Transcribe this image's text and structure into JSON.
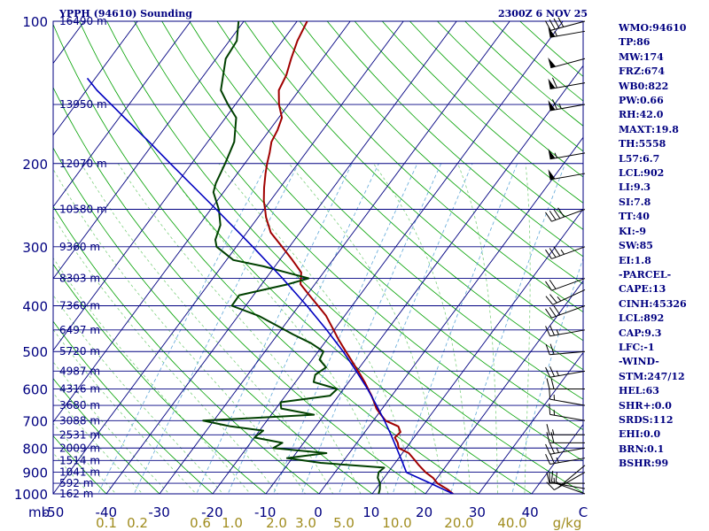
{
  "header": {
    "title": "YPPH (94610) Sounding",
    "timestamp": "2300Z  6 NOV 25"
  },
  "indices": [
    "WMO:94610",
    "TP:86",
    "MW:174",
    "FRZ:674",
    "WB0:822",
    "PW:0.66",
    "RH:42.0",
    "MAXT:19.8",
    "TH:5558",
    "L57:6.7",
    "LCL:902",
    "LI:9.3",
    "SI:7.8",
    "TT:40",
    "KI:-9",
    "SW:85",
    "EI:1.8",
    "-PARCEL-",
    "CAPE:13",
    "CINH:45326",
    "LCL:892",
    "CAP:9.3",
    "LFC:-1",
    "-WIND-",
    "STM:247/12",
    "HEL:63",
    "SHR+:0.0",
    "SRDS:112",
    "EHI:0.0",
    "BRN:0.1",
    "BSHR:99"
  ],
  "colors": {
    "background": "#ffffff",
    "isobar": "#000080",
    "isotherm": "#000080",
    "dry_adiabat": "#00a000",
    "moist_adiabat": "#7fd07f",
    "mixing_ratio": "#60a8d8",
    "temperature": "#a00000",
    "dewpoint": "#004000",
    "parcel": "#0000c0",
    "text": "#000080",
    "wind_barb": "#000000",
    "mixing_ratio_label": "#a08c1e"
  },
  "chart_data": {
    "type": "line",
    "title": "YPPH (94610) Sounding",
    "xlabel": "",
    "ylabel": "mb",
    "x_unit": "C",
    "xlim": [
      -50,
      50
    ],
    "ylim": [
      1000,
      100
    ],
    "y_scale": "log",
    "x_ticks": [
      "-50",
      "-40",
      "-30",
      "-20",
      "-10",
      "0",
      "10",
      "20",
      "30",
      "40",
      "C"
    ],
    "pressure_ticks": [
      {
        "p": 100,
        "label": "100"
      },
      {
        "p": 200,
        "label": "200"
      },
      {
        "p": 300,
        "label": "300"
      },
      {
        "p": 400,
        "label": "400"
      },
      {
        "p": 500,
        "label": "500"
      },
      {
        "p": 600,
        "label": "600"
      },
      {
        "p": 700,
        "label": "700"
      },
      {
        "p": 800,
        "label": "800"
      },
      {
        "p": 900,
        "label": "900"
      },
      {
        "p": 1000,
        "label": "1000"
      }
    ],
    "x_axis_unit_label": "mb",
    "height_labels": [
      {
        "p": 100,
        "label": "16490 m"
      },
      {
        "p": 150,
        "label": "13950 m"
      },
      {
        "p": 200,
        "label": "12070 m"
      },
      {
        "p": 250,
        "label": "10580 m"
      },
      {
        "p": 300,
        "label": "9360 m"
      },
      {
        "p": 350,
        "label": "8303 m"
      },
      {
        "p": 400,
        "label": "7360 m"
      },
      {
        "p": 450,
        "label": "6497 m"
      },
      {
        "p": 500,
        "label": "5720 m"
      },
      {
        "p": 550,
        "label": "4987 m"
      },
      {
        "p": 600,
        "label": "4316 m"
      },
      {
        "p": 650,
        "label": "3680 m"
      },
      {
        "p": 700,
        "label": "3088 m"
      },
      {
        "p": 750,
        "label": "2531 m"
      },
      {
        "p": 800,
        "label": "2009 m"
      },
      {
        "p": 850,
        "label": "1514 m"
      },
      {
        "p": 900,
        "label": "1041 m"
      },
      {
        "p": 950,
        "label": "592 m"
      },
      {
        "p": 1000,
        "label": "162 m"
      }
    ],
    "mixing_ratio_labels": [
      "0.1",
      "0.2",
      "0.6",
      "1.0",
      "2.0",
      "3.0",
      "5.0",
      "10.0",
      "20.0",
      "40.0",
      "g/kg"
    ],
    "series": [
      {
        "key": "temperature",
        "points": [
          [
            1000,
            25.2
          ],
          [
            978,
            23.5
          ],
          [
            950,
            20.8
          ],
          [
            925,
            19.2
          ],
          [
            900,
            17.0
          ],
          [
            870,
            14.8
          ],
          [
            850,
            13.4
          ],
          [
            820,
            11.2
          ],
          [
            800,
            8.6
          ],
          [
            780,
            7.7
          ],
          [
            760,
            6.4
          ],
          [
            740,
            6.7
          ],
          [
            720,
            5.5
          ],
          [
            700,
            2.3
          ],
          [
            680,
            0.6
          ],
          [
            660,
            -1.1
          ],
          [
            640,
            -2.4
          ],
          [
            620,
            -3.8
          ],
          [
            600,
            -5.4
          ],
          [
            580,
            -7.0
          ],
          [
            560,
            -8.8
          ],
          [
            540,
            -10.7
          ],
          [
            520,
            -12.7
          ],
          [
            500,
            -14.8
          ],
          [
            470,
            -18.0
          ],
          [
            450,
            -20.1
          ],
          [
            420,
            -23.5
          ],
          [
            400,
            -26.4
          ],
          [
            380,
            -29.5
          ],
          [
            360,
            -32.7
          ],
          [
            340,
            -34.2
          ],
          [
            320,
            -37.6
          ],
          [
            300,
            -41.4
          ],
          [
            280,
            -45.5
          ],
          [
            260,
            -48.5
          ],
          [
            250,
            -49.8
          ],
          [
            240,
            -51.2
          ],
          [
            225,
            -53.0
          ],
          [
            210,
            -54.7
          ],
          [
            200,
            -55.8
          ],
          [
            190,
            -56.8
          ],
          [
            180,
            -58.0
          ],
          [
            170,
            -58.5
          ],
          [
            160,
            -59.4
          ],
          [
            150,
            -61.8
          ],
          [
            140,
            -63.8
          ],
          [
            130,
            -64.5
          ],
          [
            120,
            -65.9
          ],
          [
            110,
            -67.2
          ],
          [
            100,
            -68.1
          ]
        ]
      },
      {
        "key": "dewpoint",
        "points": [
          [
            1000,
            11.2
          ],
          [
            978,
            10.8
          ],
          [
            950,
            10.0
          ],
          [
            925,
            8.8
          ],
          [
            900,
            8.2
          ],
          [
            880,
            8.6
          ],
          [
            860,
            -4.0
          ],
          [
            840,
            -11.0
          ],
          [
            820,
            -4.3
          ],
          [
            800,
            -15.0
          ],
          [
            780,
            -14.0
          ],
          [
            760,
            -20.0
          ],
          [
            735,
            -19.3
          ],
          [
            720,
            -26.0
          ],
          [
            700,
            -32.0
          ],
          [
            680,
            -12.0
          ],
          [
            660,
            -19.0
          ],
          [
            640,
            -20.0
          ],
          [
            620,
            -11.6
          ],
          [
            600,
            -11.2
          ],
          [
            580,
            -16.6
          ],
          [
            560,
            -17.3
          ],
          [
            540,
            -16.3
          ],
          [
            520,
            -18.6
          ],
          [
            500,
            -19.0
          ],
          [
            480,
            -22.5
          ],
          [
            460,
            -27.1
          ],
          [
            440,
            -31.5
          ],
          [
            420,
            -36.2
          ],
          [
            400,
            -42.6
          ],
          [
            380,
            -42.7
          ],
          [
            360,
            -35.0
          ],
          [
            350,
            -32.0
          ],
          [
            340,
            -37.0
          ],
          [
            330,
            -42.2
          ],
          [
            320,
            -48.7
          ],
          [
            300,
            -53.7
          ],
          [
            290,
            -54.9
          ],
          [
            270,
            -56.0
          ],
          [
            250,
            -58.5
          ],
          [
            230,
            -61.9
          ],
          [
            220,
            -62.7
          ],
          [
            200,
            -63.7
          ],
          [
            180,
            -65.0
          ],
          [
            160,
            -68.0
          ],
          [
            150,
            -71.4
          ],
          [
            140,
            -74.7
          ],
          [
            120,
            -78.2
          ],
          [
            110,
            -78.6
          ],
          [
            100,
            -81.0
          ]
        ]
      },
      {
        "key": "parcel",
        "points": [
          [
            1000,
            25.2
          ],
          [
            950,
            19.5
          ],
          [
            902,
            13.6
          ],
          [
            900,
            13.4
          ],
          [
            850,
            10.9
          ],
          [
            800,
            8.2
          ],
          [
            750,
            5.3
          ],
          [
            700,
            2.1
          ],
          [
            650,
            -1.5
          ],
          [
            600,
            -5.5
          ],
          [
            550,
            -10.1
          ],
          [
            500,
            -15.3
          ],
          [
            450,
            -21.4
          ],
          [
            400,
            -28.5
          ],
          [
            350,
            -36.9
          ],
          [
            300,
            -46.9
          ],
          [
            250,
            -59.0
          ],
          [
            200,
            -74.0
          ],
          [
            180,
            -81.0
          ],
          [
            160,
            -89.0
          ],
          [
            140,
            -98.0
          ],
          [
            132,
            -101.5
          ]
        ]
      }
    ],
    "winds": [
      {
        "p": 1000,
        "dir": 290,
        "spd": 20
      },
      {
        "p": 975,
        "dir": 280,
        "spd": 15
      },
      {
        "p": 950,
        "dir": 270,
        "spd": 10
      },
      {
        "p": 900,
        "dir": 240,
        "spd": 10
      },
      {
        "p": 870,
        "dir": 230,
        "spd": 5
      },
      {
        "p": 840,
        "dir": 260,
        "spd": 25
      },
      {
        "p": 800,
        "dir": 260,
        "spd": 25
      },
      {
        "p": 780,
        "dir": 270,
        "spd": 20
      },
      {
        "p": 750,
        "dir": 270,
        "spd": 15
      },
      {
        "p": 700,
        "dir": 280,
        "spd": 15
      },
      {
        "p": 650,
        "dir": 280,
        "spd": 15
      },
      {
        "p": 600,
        "dir": 270,
        "spd": 20
      },
      {
        "p": 550,
        "dir": 260,
        "spd": 25
      },
      {
        "p": 500,
        "dir": 265,
        "spd": 20
      },
      {
        "p": 450,
        "dir": 260,
        "spd": 25
      },
      {
        "p": 400,
        "dir": 250,
        "spd": 30
      },
      {
        "p": 370,
        "dir": 245,
        "spd": 25
      },
      {
        "p": 350,
        "dir": 250,
        "spd": 20
      },
      {
        "p": 300,
        "dir": 250,
        "spd": 35
      },
      {
        "p": 250,
        "dir": 250,
        "spd": 40
      },
      {
        "p": 210,
        "dir": 260,
        "spd": 50
      },
      {
        "p": 190,
        "dir": 260,
        "spd": 55
      },
      {
        "p": 150,
        "dir": 260,
        "spd": 65
      },
      {
        "p": 135,
        "dir": 260,
        "spd": 60
      },
      {
        "p": 120,
        "dir": 255,
        "spd": 50
      },
      {
        "p": 105,
        "dir": 260,
        "spd": 55
      },
      {
        "p": 100,
        "dir": 255,
        "spd": 40
      }
    ]
  }
}
